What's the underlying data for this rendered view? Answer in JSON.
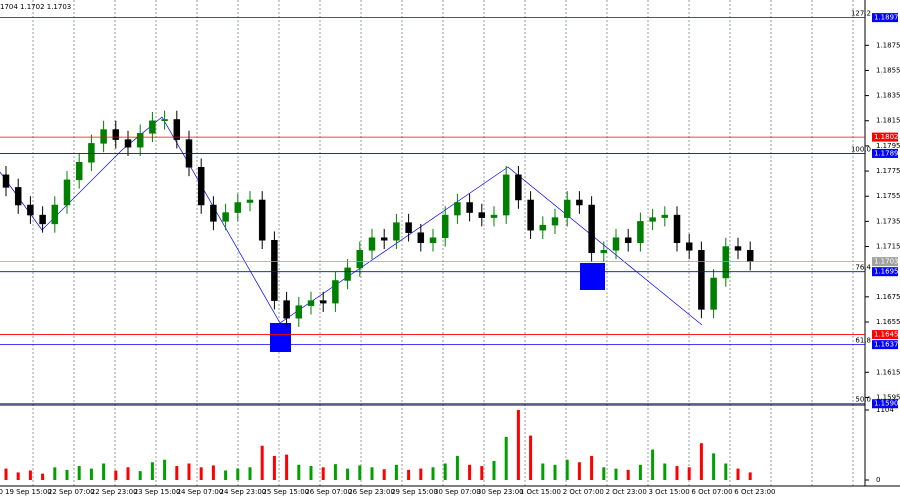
{
  "chart_data": {
    "type": "candlestick",
    "header": "1704 1.1702 1.1703",
    "up_color": "#008000",
    "down_color": "#000000",
    "vol_up_color": "#00a000",
    "vol_down_color": "#ff0000",
    "ylim": [
      1.1589,
      1.1911
    ],
    "yticks": [
      1.1875,
      1.1855,
      1.1835,
      1.1815,
      1.1795,
      1.1775,
      1.1755,
      1.1735,
      1.1715,
      1.1675,
      1.1655,
      1.1615,
      1.1595
    ],
    "vol_ylim": [
      0,
      1104
    ],
    "vol_yticks": [
      1104,
      0
    ],
    "x_labels": [
      "0",
      "19 Sep 15:00",
      "22 Sep 07:00",
      "22 Sep 23:00",
      "23 Sep 15:00",
      "24 Sep 07:00",
      "24 Sep 23:00",
      "25 Sep 15:00",
      "26 Sep 07:00",
      "26 Sep 23:00",
      "29 Sep 15:00",
      "30 Sep 07:00",
      "30 Sep 23:00",
      "1 Oct 15:00",
      "2 Oct 07:00",
      "2 Oct 23:00",
      "3 Oct 15:00",
      "6 Oct 07:00",
      "6 Oct 23:00"
    ],
    "levels": [
      {
        "label": "127.2",
        "price": 1.1897,
        "color": "#0000ff"
      },
      {
        "price": 1.1802,
        "color": "#ff0000"
      },
      {
        "label": "100.0",
        "price": 1.1789,
        "color": "#0000ff"
      },
      {
        "price": 1.1703,
        "color": "#a0a0a0"
      },
      {
        "label": "76.4",
        "price": 1.1695,
        "color": "#0000ff"
      },
      {
        "price": 1.1645,
        "color": "#ff0000"
      },
      {
        "label": "61.8",
        "price": 1.1637,
        "color": "#0000ff"
      },
      {
        "label": "50.0",
        "price": {
          "value": 1.159,
          "label": "1.1590"
        },
        "color": "#0000ff"
      }
    ],
    "open": [
      1.1772,
      1.1762,
      1.1748,
      1.174,
      1.1733,
      1.1748,
      1.1768,
      1.1782,
      1.1797,
      1.1808,
      1.18,
      1.1794,
      1.1805,
      1.1815,
      1.1816,
      1.18,
      1.1778,
      1.1748,
      1.1735,
      1.1742,
      1.175,
      1.1752,
      1.172,
      1.1672,
      1.1658,
      1.1668,
      1.1672,
      1.167,
      1.1688,
      1.1698,
      1.1712,
      1.1722,
      1.172,
      1.1734,
      1.1726,
      1.1718,
      1.1722,
      1.174,
      1.175,
      1.1742,
      1.1738,
      1.174,
      1.1772,
      1.1752,
      1.1728,
      1.1732,
      1.1738,
      1.1752,
      1.1748,
      1.171,
      1.1712,
      1.1722,
      1.1718,
      1.1735,
      1.1738,
      1.174,
      1.1718,
      1.1712,
      1.1665,
      1.169,
      1.1715,
      1.1712
    ],
    "high": [
      1.1779,
      1.1769,
      1.1755,
      1.1747,
      1.1755,
      1.1775,
      1.1789,
      1.1804,
      1.1815,
      1.1815,
      1.1807,
      1.1812,
      1.1822,
      1.1823,
      1.1823,
      1.1807,
      1.1785,
      1.1755,
      1.1749,
      1.1757,
      1.1759,
      1.1759,
      1.1727,
      1.1679,
      1.1675,
      1.1679,
      1.1679,
      1.1695,
      1.1705,
      1.1719,
      1.1729,
      1.1729,
      1.1741,
      1.1741,
      1.1733,
      1.1729,
      1.1747,
      1.1757,
      1.1757,
      1.1749,
      1.1747,
      1.1779,
      1.1779,
      1.1759,
      1.1739,
      1.1745,
      1.1759,
      1.1759,
      1.1755,
      1.1719,
      1.1729,
      1.1729,
      1.1742,
      1.1745,
      1.1747,
      1.1747,
      1.1725,
      1.1719,
      1.1697,
      1.1722,
      1.1722,
      1.1719
    ],
    "low": [
      1.1755,
      1.1741,
      1.1733,
      1.1726,
      1.1726,
      1.1741,
      1.1761,
      1.1775,
      1.179,
      1.1793,
      1.1787,
      1.1787,
      1.1798,
      1.1808,
      1.1793,
      1.1771,
      1.1741,
      1.1728,
      1.1728,
      1.1735,
      1.1743,
      1.1713,
      1.1665,
      1.1651,
      1.1651,
      1.1661,
      1.1663,
      1.1663,
      1.1681,
      1.1691,
      1.1705,
      1.1713,
      1.1713,
      1.1719,
      1.1711,
      1.1711,
      1.1715,
      1.1733,
      1.1735,
      1.1731,
      1.1731,
      1.1733,
      1.1745,
      1.1721,
      1.1721,
      1.1725,
      1.1731,
      1.1741,
      1.1703,
      1.1703,
      1.1705,
      1.1711,
      1.1711,
      1.1728,
      1.1731,
      1.1711,
      1.1705,
      1.1658,
      1.1658,
      1.1683,
      1.1705,
      1.1696
    ],
    "close": [
      1.1762,
      1.1748,
      1.174,
      1.1733,
      1.1748,
      1.1768,
      1.1782,
      1.1797,
      1.1808,
      1.18,
      1.1794,
      1.1805,
      1.1815,
      1.1816,
      1.18,
      1.1778,
      1.1748,
      1.1735,
      1.1742,
      1.175,
      1.1752,
      1.172,
      1.1672,
      1.1658,
      1.1668,
      1.1672,
      1.167,
      1.1688,
      1.1698,
      1.1712,
      1.1722,
      1.172,
      1.1734,
      1.1726,
      1.1718,
      1.1722,
      1.174,
      1.175,
      1.1742,
      1.1738,
      1.174,
      1.1772,
      1.1752,
      1.1728,
      1.1732,
      1.1738,
      1.1752,
      1.1748,
      1.171,
      1.1712,
      1.1722,
      1.1718,
      1.1735,
      1.1738,
      1.174,
      1.1718,
      1.1712,
      1.1665,
      1.169,
      1.1715,
      1.1712,
      1.1703
    ],
    "volume": [
      180,
      120,
      150,
      100,
      200,
      160,
      220,
      180,
      260,
      150,
      200,
      140,
      280,
      320,
      220,
      260,
      200,
      230,
      150,
      180,
      200,
      540,
      380,
      400,
      240,
      220,
      200,
      250,
      180,
      230,
      200,
      170,
      240,
      160,
      180,
      200,
      260,
      380,
      240,
      220,
      300,
      680,
      1104,
      700,
      260,
      240,
      320,
      280,
      380,
      200,
      180,
      160,
      240,
      480,
      260,
      220,
      200,
      580,
      420,
      260,
      180,
      120
    ]
  }
}
